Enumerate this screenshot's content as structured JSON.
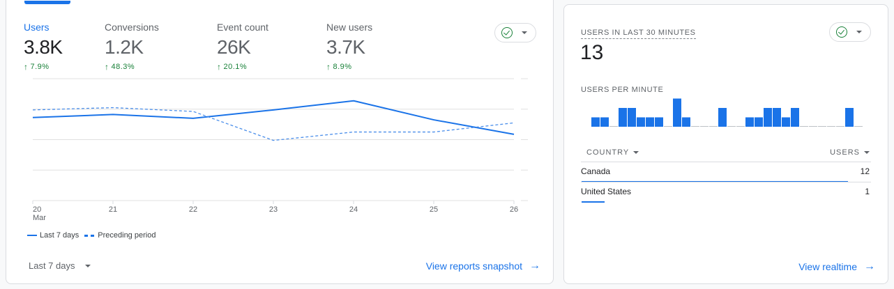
{
  "overview": {
    "metrics": [
      {
        "label": "Users",
        "value": "3.8K",
        "delta": "7.9%",
        "active": true
      },
      {
        "label": "Conversions",
        "value": "1.2K",
        "delta": "48.3%",
        "active": false
      },
      {
        "label": "Event count",
        "value": "26K",
        "delta": "20.1%",
        "active": false
      },
      {
        "label": "New users",
        "value": "3.7K",
        "delta": "8.9%",
        "active": false
      }
    ],
    "delta_arrow": "↑",
    "status_icon": "check-circle-icon",
    "legend": {
      "current": "Last 7 days",
      "previous": "Preceding period"
    },
    "date_range": "Last 7 days",
    "link": "View reports snapshot",
    "link_arrow": "→"
  },
  "chart_data": [
    {
      "type": "line",
      "title": "Users",
      "x": [
        "20",
        "21",
        "22",
        "23",
        "24",
        "25",
        "26"
      ],
      "x_sublabel": {
        "20": "Mar"
      },
      "yticks": [
        "800",
        "600",
        "400",
        "200",
        "0"
      ],
      "ylim": [
        0,
        800
      ],
      "grid": true,
      "series": [
        {
          "name": "Last 7 days",
          "style": "solid",
          "values": [
            545,
            565,
            540,
            595,
            655,
            530,
            435
          ]
        },
        {
          "name": "Preceding period",
          "style": "dashed",
          "values": [
            595,
            610,
            585,
            395,
            450,
            450,
            510
          ]
        }
      ],
      "legend": "bottom-left",
      "color": "#1a73e8"
    },
    {
      "type": "bar",
      "title": "USERS PER MINUTE",
      "categories_count": 30,
      "values": [
        1,
        1,
        0,
        2,
        2,
        1,
        1,
        1,
        0,
        3,
        1,
        0,
        0,
        0,
        2,
        0,
        0,
        1,
        1,
        2,
        2,
        1,
        2,
        0,
        0,
        0,
        0,
        0,
        2,
        0
      ],
      "ylim": [
        0,
        3
      ],
      "color": "#1a73e8"
    }
  ],
  "realtime": {
    "title": "USERS IN LAST 30 MINUTES",
    "value": "13",
    "subtitle": "USERS PER MINUTE",
    "col_country": "COUNTRY",
    "col_users": "USERS",
    "rows": [
      {
        "country": "Canada",
        "users": "12",
        "share": 0.92
      },
      {
        "country": "United States",
        "users": "1",
        "share": 0.08
      }
    ],
    "link": "View realtime",
    "link_arrow": "→"
  }
}
